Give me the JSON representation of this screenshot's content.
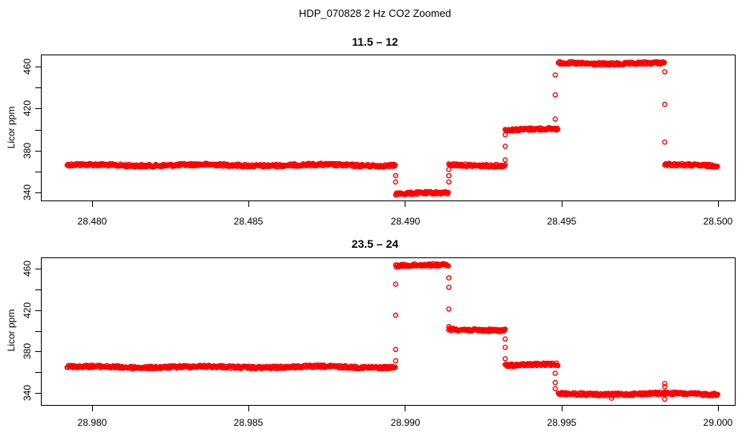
{
  "chart_data": [
    {
      "type": "scatter",
      "title": "11.5 – 12",
      "xlabel": "",
      "ylabel": "Licor ppm",
      "xlim": [
        28.4788,
        28.5018
      ],
      "ylim": [
        334,
        470
      ],
      "xticks": [
        "28.480",
        "28.485",
        "28.490",
        "28.495",
        "28.500"
      ],
      "yticks": [
        "340",
        "380",
        "420",
        "460"
      ],
      "yticks_minor": [
        360,
        400,
        440
      ],
      "marker": "open-circle",
      "color": "#ff0000",
      "grid": false,
      "segments": [
        {
          "x_start": 28.4792,
          "x_end": 28.4897,
          "y": 366
        },
        {
          "x_start": 28.4897,
          "x_end": 28.4914,
          "y": 339
        },
        {
          "x_start": 28.4914,
          "x_end": 28.4932,
          "y": 366
        },
        {
          "x_start": 28.4932,
          "x_end": 28.4949,
          "y": 400
        },
        {
          "x_start": 28.4949,
          "x_end": 28.4983,
          "y": 463
        },
        {
          "x_start": 28.4983,
          "x_end": 28.5,
          "y": 366
        }
      ],
      "transition_points": [
        {
          "x": 28.4897,
          "y": 356
        },
        {
          "x": 28.4897,
          "y": 350
        },
        {
          "x": 28.4914,
          "y": 350
        },
        {
          "x": 28.4914,
          "y": 356
        },
        {
          "x": 28.4914,
          "y": 362
        },
        {
          "x": 28.4932,
          "y": 371
        },
        {
          "x": 28.4932,
          "y": 384
        },
        {
          "x": 28.4932,
          "y": 395
        },
        {
          "x": 28.4948,
          "y": 410
        },
        {
          "x": 28.4948,
          "y": 433
        },
        {
          "x": 28.4948,
          "y": 452
        },
        {
          "x": 28.4983,
          "y": 455
        },
        {
          "x": 28.4983,
          "y": 424
        },
        {
          "x": 28.4983,
          "y": 388
        }
      ]
    },
    {
      "type": "scatter",
      "title": "23.5 – 24",
      "xlabel": "",
      "ylabel": "Licor ppm",
      "xlim": [
        28.9788,
        29.0018
      ],
      "ylim": [
        329,
        472
      ],
      "xticks": [
        "28.980",
        "28.985",
        "28.990",
        "28.995",
        "29.000"
      ],
      "yticks": [
        "340",
        "380",
        "420",
        "460"
      ],
      "yticks_minor": [
        360,
        400,
        440
      ],
      "marker": "open-circle",
      "color": "#ff0000",
      "grid": false,
      "segments": [
        {
          "x_start": 28.9792,
          "x_end": 28.9897,
          "y": 365
        },
        {
          "x_start": 28.9897,
          "x_end": 28.9914,
          "y": 463
        },
        {
          "x_start": 28.9914,
          "x_end": 28.9932,
          "y": 401
        },
        {
          "x_start": 28.9932,
          "x_end": 28.9949,
          "y": 367
        },
        {
          "x_start": 28.9949,
          "x_end": 29.0,
          "y": 339
        }
      ],
      "transition_points": [
        {
          "x": 28.9897,
          "y": 371
        },
        {
          "x": 28.9897,
          "y": 382
        },
        {
          "x": 28.9897,
          "y": 415
        },
        {
          "x": 28.9897,
          "y": 445
        },
        {
          "x": 28.9914,
          "y": 451
        },
        {
          "x": 28.9914,
          "y": 442
        },
        {
          "x": 28.9914,
          "y": 421
        },
        {
          "x": 28.9914,
          "y": 404
        },
        {
          "x": 28.9932,
          "y": 392
        },
        {
          "x": 28.9932,
          "y": 384
        },
        {
          "x": 28.9932,
          "y": 373
        },
        {
          "x": 28.9948,
          "y": 359
        },
        {
          "x": 28.9948,
          "y": 350
        },
        {
          "x": 28.9948,
          "y": 344
        },
        {
          "x": 28.9966,
          "y": 335
        },
        {
          "x": 28.9983,
          "y": 334
        },
        {
          "x": 28.9983,
          "y": 349
        },
        {
          "x": 28.9983,
          "y": 346
        }
      ]
    }
  ],
  "figure": {
    "title": "HDP_070828  2 Hz CO2 Zoomed"
  },
  "panels": [
    {
      "title": "11.5 – 12",
      "ylabel": "Licor ppm",
      "xticks": [
        "28.480",
        "28.485",
        "28.490",
        "28.495",
        "28.500"
      ],
      "yticks": [
        "340",
        "380",
        "420",
        "460"
      ]
    },
    {
      "title": "23.5 – 24",
      "ylabel": "Licor ppm",
      "xticks": [
        "28.980",
        "28.985",
        "28.990",
        "28.995",
        "29.000"
      ],
      "yticks": [
        "340",
        "380",
        "420",
        "460"
      ]
    }
  ]
}
